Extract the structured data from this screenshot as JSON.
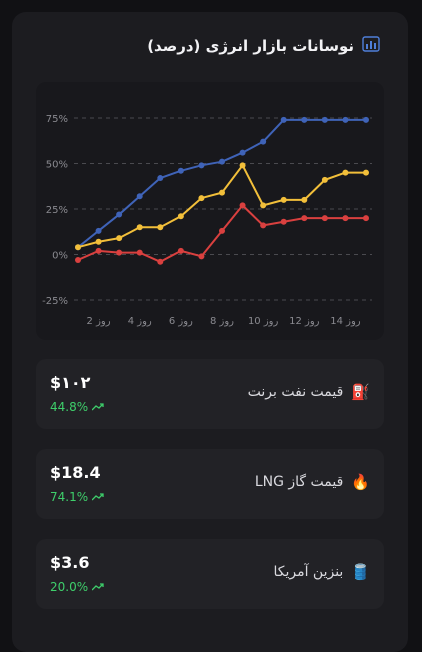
{
  "title": "نوسانات بازار انرژی (درصد)",
  "icon": "bar-chart-icon",
  "colors": {
    "blue": "#3f63b8",
    "yellow": "#f2bf3a",
    "red": "#d9403f",
    "positive": "#3ecf6b",
    "grid": "#4a4a4f"
  },
  "chart_data": {
    "type": "line",
    "x": [
      1,
      2,
      3,
      4,
      5,
      6,
      7,
      8,
      9,
      10,
      11,
      12,
      13,
      14,
      15
    ],
    "xtick_labels": [
      "روز 2",
      "روز 4",
      "روز 6",
      "روز 8",
      "روز 10",
      "روز 12",
      "روز 14"
    ],
    "ytick_labels": [
      "75%",
      "50%",
      "25%",
      "0%",
      "-25%"
    ],
    "ylim": [
      -25,
      75
    ],
    "grid": "dashed-horizontal",
    "series": [
      {
        "color": "blue",
        "values": [
          4,
          13,
          22,
          32,
          42,
          46,
          49,
          51,
          56,
          62,
          74,
          74,
          74,
          74,
          74
        ]
      },
      {
        "color": "yellow",
        "values": [
          4,
          7,
          9,
          15,
          15,
          21,
          31,
          34,
          49,
          27,
          30,
          30,
          41,
          45,
          45
        ]
      },
      {
        "color": "red",
        "values": [
          -3,
          2,
          1,
          1,
          -4,
          2,
          -1,
          13,
          27,
          16,
          18,
          20,
          20,
          20,
          20
        ]
      }
    ]
  },
  "stats": [
    {
      "value": "$۱۰۲",
      "change": "44.8%",
      "label": "قیمت نفت برنت",
      "emoji": "⛽",
      "icon": "fuel-pump-icon"
    },
    {
      "value": "$18.4",
      "change": "74.1%",
      "label": "قیمت گاز LNG",
      "emoji": "🔥",
      "icon": "fire-icon"
    },
    {
      "value": "$3.6",
      "change": "20.0%",
      "label": "بنزین آمریکا",
      "emoji": "🛢️",
      "icon": "oil-barrel-icon"
    }
  ]
}
